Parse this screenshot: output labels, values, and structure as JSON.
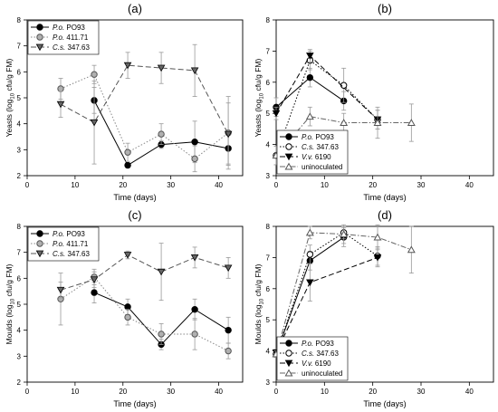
{
  "chart_data": [
    {
      "panel": "(a)",
      "type": "line",
      "ylabel_main": "Yeasts (log",
      "ylabel_sub": "10",
      "ylabel_tail": " cfu/g FM)",
      "xlabel": "Time (days)",
      "xlim": [
        0,
        45
      ],
      "ylim": [
        2,
        8
      ],
      "xticks": [
        0,
        10,
        20,
        30,
        40
      ],
      "yticks": [
        2,
        3,
        4,
        5,
        6,
        7,
        8
      ],
      "legend_position": "top-left",
      "series": [
        {
          "name_italic": "P.o.",
          "name_rest": " PO93",
          "marker": "circle-filled",
          "line": "solid",
          "color": "#000000",
          "x": [
            14,
            21,
            28,
            35,
            42
          ],
          "y": [
            4.9,
            2.4,
            3.2,
            3.3,
            3.05
          ],
          "err": [
            0.5,
            0.1,
            0.15,
            0.8,
            0.6
          ]
        },
        {
          "name_italic": "P.o.",
          "name_rest": " 411.71",
          "marker": "circle-grey",
          "line": "dotted",
          "color": "#888888",
          "x": [
            7,
            14,
            21,
            28,
            35,
            42
          ],
          "y": [
            5.35,
            5.9,
            2.9,
            3.6,
            2.65,
            3.65
          ],
          "err": [
            0.4,
            0.35,
            0.35,
            0.4,
            0.5,
            1.4
          ]
        },
        {
          "name_italic": "C.s.",
          "name_rest": " 347.63",
          "marker": "triangle-down-grey",
          "line": "dashed",
          "color": "#555555",
          "x": [
            7,
            14,
            21,
            28,
            35,
            42
          ],
          "y": [
            4.75,
            4.05,
            6.25,
            6.15,
            6.05,
            3.6
          ],
          "err": [
            0.5,
            1.6,
            0.5,
            0.6,
            1.0,
            1.2
          ]
        }
      ]
    },
    {
      "panel": "(b)",
      "type": "line",
      "ylabel_main": "Yeasts (log",
      "ylabel_sub": "10",
      "ylabel_tail": " cfu/g FM)",
      "xlabel": "Time (days)",
      "xlim": [
        0,
        45
      ],
      "ylim": [
        3,
        8
      ],
      "xticks": [
        0,
        10,
        20,
        30,
        40
      ],
      "yticks": [
        3,
        4,
        5,
        6,
        7,
        8
      ],
      "legend_position": "bottom-left",
      "series": [
        {
          "name_italic": "P.o.",
          "name_rest": " PO93",
          "marker": "circle-filled",
          "line": "solid",
          "color": "#000000",
          "x": [
            0,
            7,
            14
          ],
          "y": [
            5.2,
            6.15,
            5.4
          ],
          "err": [
            0.3,
            0.3,
            0.3
          ]
        },
        {
          "name_italic": "C.s.",
          "name_rest": " 347.63",
          "marker": "circle-open",
          "line": "dotted",
          "color": "#000000",
          "x": [
            0,
            7,
            14,
            21
          ],
          "y": [
            3.65,
            6.7,
            5.9,
            4.8
          ],
          "err": [
            0.3,
            0.3,
            0.55,
            0.3
          ]
        },
        {
          "name_italic": "V.v.",
          "name_rest": " 6190",
          "marker": "triangle-down-filled",
          "line": "dashed",
          "color": "#000000",
          "x": [
            0,
            7,
            21
          ],
          "y": [
            5.0,
            6.85,
            4.8
          ],
          "err": [
            0.2,
            0.2,
            0.3
          ]
        },
        {
          "name_italic": "",
          "name_rest": "uninoculated",
          "marker": "triangle-up-open",
          "line": "dashdot",
          "color": "#666666",
          "x": [
            0,
            7,
            14,
            21,
            28
          ],
          "y": [
            3.65,
            4.9,
            4.7,
            4.7,
            4.7
          ],
          "err": [
            0.3,
            0.3,
            0.3,
            0.5,
            0.6
          ]
        }
      ]
    },
    {
      "panel": "(c)",
      "type": "line",
      "ylabel_main": "Moulds (log",
      "ylabel_sub": "10",
      "ylabel_tail": " cfu/g FM)",
      "xlabel": "Time (days)",
      "xlim": [
        0,
        45
      ],
      "ylim": [
        2,
        8
      ],
      "xticks": [
        0,
        10,
        20,
        30,
        40
      ],
      "yticks": [
        2,
        3,
        4,
        5,
        6,
        7,
        8
      ],
      "legend_position": "top-left",
      "series": [
        {
          "name_italic": "P.o.",
          "name_rest": " PO93",
          "marker": "circle-filled",
          "line": "solid",
          "color": "#000000",
          "x": [
            14,
            21,
            28,
            35,
            42
          ],
          "y": [
            5.45,
            4.9,
            3.45,
            4.8,
            4.0
          ],
          "err": [
            0.4,
            0.3,
            0.2,
            0.4,
            0.5
          ]
        },
        {
          "name_italic": "P.o.",
          "name_rest": " 411.71",
          "marker": "circle-grey",
          "line": "dotted",
          "color": "#888888",
          "x": [
            7,
            14,
            21,
            28,
            35,
            42
          ],
          "y": [
            5.2,
            6.05,
            4.5,
            3.85,
            3.85,
            3.2
          ],
          "err": [
            1.0,
            0.3,
            0.3,
            0.4,
            0.6,
            0.3
          ]
        },
        {
          "name_italic": "C.s.",
          "name_rest": " 347.63",
          "marker": "triangle-down-grey",
          "line": "dashed",
          "color": "#555555",
          "x": [
            7,
            14,
            21,
            28,
            35,
            42
          ],
          "y": [
            5.55,
            5.95,
            6.9,
            6.25,
            6.8,
            6.4
          ],
          "err": [
            0.3,
            0.3,
            0.15,
            1.1,
            0.4,
            0.4
          ]
        }
      ]
    },
    {
      "panel": "(d)",
      "type": "line",
      "ylabel_main": "Moulds (log",
      "ylabel_sub": "10",
      "ylabel_tail": " cfu/g FM)",
      "xlabel": "Time (days)",
      "xlim": [
        0,
        45
      ],
      "ylim": [
        3,
        8
      ],
      "xticks": [
        0,
        10,
        20,
        30,
        40
      ],
      "yticks": [
        3,
        4,
        5,
        6,
        7,
        8
      ],
      "legend_position": "bottom-left",
      "series": [
        {
          "name_italic": "P.o.",
          "name_rest": " PO93",
          "marker": "circle-filled",
          "line": "solid",
          "color": "#000000",
          "x": [
            0,
            7,
            14
          ],
          "y": [
            3.9,
            6.9,
            7.65
          ],
          "err": [
            0.1,
            0.3,
            0.3
          ]
        },
        {
          "name_italic": "C.s.",
          "name_rest": " 347.63",
          "marker": "circle-open",
          "line": "dotted",
          "color": "#000000",
          "x": [
            0,
            7,
            14,
            21
          ],
          "y": [
            3.9,
            7.1,
            7.8,
            7.05
          ],
          "err": [
            0.1,
            0.3,
            0.2,
            0.3
          ]
        },
        {
          "name_italic": "V.v.",
          "name_rest": " 6190",
          "marker": "triangle-down-filled",
          "line": "dashed",
          "color": "#000000",
          "x": [
            0,
            7,
            21
          ],
          "y": [
            3.95,
            6.2,
            7.0
          ],
          "err": [
            0.1,
            0.6,
            0.3
          ]
        },
        {
          "name_italic": "",
          "name_rest": "uninoculated",
          "marker": "triangle-up-open",
          "line": "dashdot",
          "color": "#666666",
          "x": [
            0,
            7,
            14,
            21,
            28
          ],
          "y": [
            3.9,
            7.8,
            7.75,
            7.65,
            7.25
          ],
          "err": [
            0.1,
            0.2,
            0.3,
            0.4,
            0.75
          ]
        }
      ]
    }
  ]
}
